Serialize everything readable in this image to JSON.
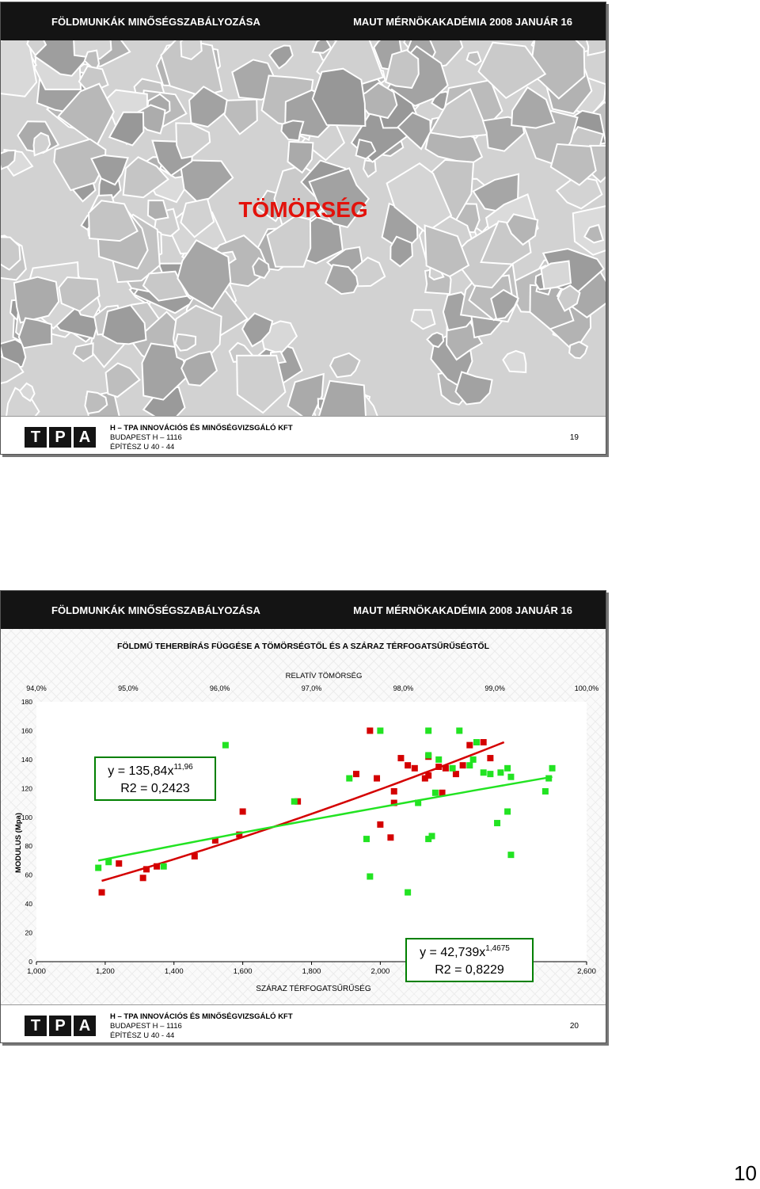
{
  "header": {
    "left": "FÖLDMUNKÁK MINŐSÉGSZABÁLYOZÁSA",
    "right": "MAUT MÉRNÖKAKADÉMIA 2008 JANUÁR 16"
  },
  "slide1": {
    "title": "TÖMÖRSÉG",
    "page": "19"
  },
  "slide2": {
    "page": "20"
  },
  "footer": {
    "logo": [
      "T",
      "P",
      "A"
    ],
    "company": "H – TPA INNOVÁCIÓS ÉS MINŐSÉGVIZSGÁLÓ KFT",
    "city": "BUDAPEST H – 1116",
    "street": "ÉPÍTÉSZ U 40 - 44"
  },
  "page_number": "10",
  "chart_data": {
    "type": "scatter",
    "title": "FÖLDMŰ TEHERBÍRÁS FÜGGÉSE A TÖMÖRSÉGTŐL ÉS A SZÁRAZ TÉRFOGATSŰRŰSÉGTŐL",
    "top_axis_label": "RELATÍV TÖMÖRSÉG",
    "top_ticks": [
      "94,0%",
      "95,0%",
      "96,0%",
      "97,0%",
      "98,0%",
      "99,0%",
      "100,0%"
    ],
    "xlabel": "SZÁRAZ TÉRFOGATSŰRŰSÉG",
    "ylabel": "MODULUS (Mpa)",
    "xlim": [
      1.0,
      2.6
    ],
    "ylim": [
      0,
      180
    ],
    "x_ticks": [
      "1,000",
      "1,200",
      "1,400",
      "1,600",
      "1,800",
      "2,000",
      "2,200",
      "2,400",
      "2,600"
    ],
    "y_ticks": [
      "0",
      "20",
      "40",
      "60",
      "80",
      "100",
      "120",
      "140",
      "160",
      "180"
    ],
    "grid": false,
    "colors": {
      "red": "#d40000",
      "green": "#22e322",
      "box_border": "#008000"
    },
    "series": [
      {
        "color": "#d40000",
        "points": [
          [
            1.19,
            48
          ],
          [
            1.24,
            68
          ],
          [
            1.31,
            58
          ],
          [
            1.32,
            64
          ],
          [
            1.35,
            66
          ],
          [
            1.46,
            73
          ],
          [
            1.52,
            84
          ],
          [
            1.59,
            88
          ],
          [
            1.6,
            104
          ],
          [
            1.76,
            111
          ],
          [
            1.93,
            130
          ],
          [
            1.97,
            160
          ],
          [
            1.99,
            127
          ],
          [
            2.0,
            95
          ],
          [
            2.03,
            86
          ],
          [
            2.04,
            110
          ],
          [
            2.04,
            118
          ],
          [
            2.06,
            141
          ],
          [
            2.08,
            136
          ],
          [
            2.1,
            134
          ],
          [
            2.13,
            127
          ],
          [
            2.14,
            129
          ],
          [
            2.14,
            142
          ],
          [
            2.17,
            135
          ],
          [
            2.18,
            117
          ],
          [
            2.19,
            134
          ],
          [
            2.22,
            130
          ],
          [
            2.24,
            136
          ],
          [
            2.26,
            150
          ],
          [
            2.3,
            152
          ],
          [
            2.32,
            141
          ]
        ],
        "fit": {
          "x": [
            1.19,
            2.36
          ],
          "y": [
            56,
            152
          ]
        }
      },
      {
        "color": "#22e322",
        "points": [
          [
            1.18,
            65
          ],
          [
            1.21,
            69
          ],
          [
            1.37,
            66
          ],
          [
            1.55,
            150
          ],
          [
            1.75,
            111
          ],
          [
            1.91,
            127
          ],
          [
            1.96,
            85
          ],
          [
            1.97,
            59
          ],
          [
            2.0,
            160
          ],
          [
            2.08,
            48
          ],
          [
            2.11,
            110
          ],
          [
            2.14,
            160
          ],
          [
            2.14,
            143
          ],
          [
            2.14,
            85
          ],
          [
            2.15,
            87
          ],
          [
            2.16,
            117
          ],
          [
            2.17,
            140
          ],
          [
            2.21,
            134
          ],
          [
            2.23,
            160
          ],
          [
            2.26,
            136
          ],
          [
            2.27,
            140
          ],
          [
            2.28,
            152
          ],
          [
            2.3,
            131
          ],
          [
            2.32,
            130
          ],
          [
            2.34,
            96
          ],
          [
            2.35,
            131
          ],
          [
            2.37,
            134
          ],
          [
            2.37,
            104
          ],
          [
            2.38,
            128
          ],
          [
            2.38,
            74
          ],
          [
            2.48,
            118
          ],
          [
            2.49,
            127
          ],
          [
            2.5,
            134
          ]
        ],
        "fit": {
          "x": [
            1.18,
            2.5
          ],
          "y": [
            70,
            128
          ]
        }
      }
    ],
    "annotations": [
      {
        "series": "red",
        "text": "y = 135,84x",
        "sup": "11,96",
        "r2": "R2 = 0,2423"
      },
      {
        "series": "green",
        "text": "y = 42,739x",
        "sup": "1,4675",
        "r2": "R2 = 0,8229"
      }
    ]
  }
}
